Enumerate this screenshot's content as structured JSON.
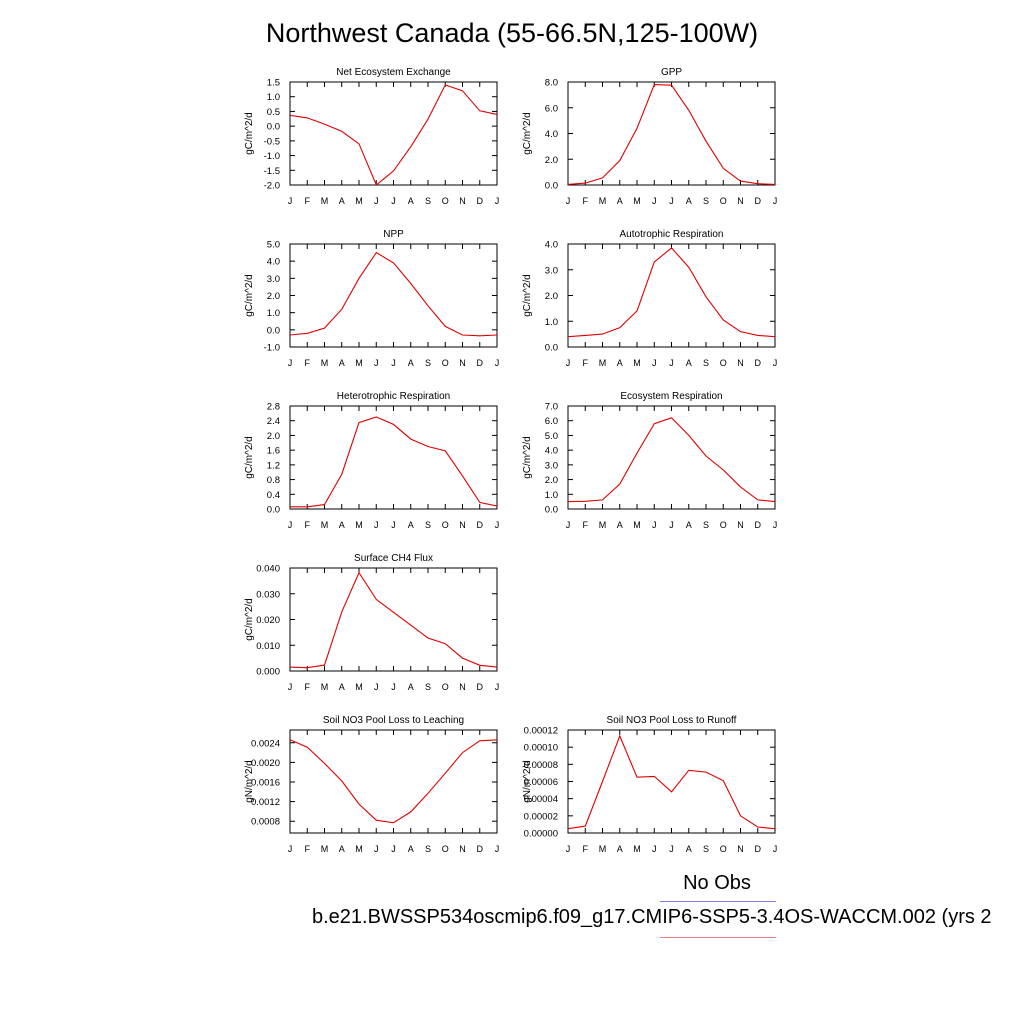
{
  "page": {
    "title": "Northwest Canada (55-66.5N,125-100W)",
    "legend_obs_label": "No Obs",
    "legend_case_label": "b.e21.BWSSP534oscmip6.f09_g17.CMIP6-SSP5-3.4OS-WACCM.002 (yrs 2",
    "colors": {
      "model": "#e00000",
      "obs": "#7b7bf0",
      "case_line": "#f07b7b"
    }
  },
  "chart_data": [
    {
      "type": "line",
      "title": "Net Ecosystem Exchange",
      "ylabel": "gC/m^2/d",
      "categories": [
        "J",
        "F",
        "M",
        "A",
        "M",
        "J",
        "J",
        "A",
        "S",
        "O",
        "N",
        "D",
        "J"
      ],
      "ylim": [
        -2.0,
        1.5
      ],
      "yticks": [
        "1.5",
        "1.0",
        "0.5",
        "0.0",
        "-0.5",
        "-1.0",
        "-1.5",
        "-2.0"
      ],
      "series": [
        {
          "values": [
            0.37,
            0.28,
            0.07,
            -0.18,
            -0.6,
            -2.0,
            -1.52,
            -0.7,
            0.24,
            1.4,
            1.2,
            0.52,
            0.4
          ]
        }
      ]
    },
    {
      "type": "line",
      "title": "GPP",
      "ylabel": "gC/m^2/d",
      "categories": [
        "J",
        "F",
        "M",
        "A",
        "M",
        "J",
        "J",
        "A",
        "S",
        "O",
        "N",
        "D",
        "J"
      ],
      "ylim": [
        0.0,
        8.0
      ],
      "yticks": [
        "8.0",
        "6.0",
        "4.0",
        "2.0",
        "0.0"
      ],
      "series": [
        {
          "values": [
            0.05,
            0.15,
            0.55,
            1.9,
            4.4,
            7.8,
            7.75,
            5.8,
            3.4,
            1.3,
            0.3,
            0.1,
            0.05
          ]
        }
      ]
    },
    {
      "type": "line",
      "title": "NPP",
      "ylabel": "gC/m^2/d",
      "categories": [
        "J",
        "F",
        "M",
        "A",
        "M",
        "J",
        "J",
        "A",
        "S",
        "O",
        "N",
        "D",
        "J"
      ],
      "ylim": [
        -1.0,
        5.0
      ],
      "yticks": [
        "5.0",
        "4.0",
        "3.0",
        "2.0",
        "1.0",
        "0.0",
        "-1.0"
      ],
      "series": [
        {
          "values": [
            -0.3,
            -0.2,
            0.1,
            1.2,
            3.0,
            4.5,
            3.9,
            2.7,
            1.4,
            0.2,
            -0.3,
            -0.35,
            -0.3
          ]
        }
      ]
    },
    {
      "type": "line",
      "title": "Autotrophic Respiration",
      "ylabel": "gC/m^2/d",
      "categories": [
        "J",
        "F",
        "M",
        "A",
        "M",
        "J",
        "J",
        "A",
        "S",
        "O",
        "N",
        "D",
        "J"
      ],
      "ylim": [
        0.0,
        4.0
      ],
      "yticks": [
        "4.0",
        "3.0",
        "2.0",
        "1.0",
        "0.0"
      ],
      "series": [
        {
          "values": [
            0.4,
            0.45,
            0.5,
            0.75,
            1.4,
            3.3,
            3.85,
            3.1,
            1.95,
            1.05,
            0.6,
            0.45,
            0.4
          ]
        }
      ]
    },
    {
      "type": "line",
      "title": "Heterotrophic Respiration",
      "ylabel": "gC/m^2/d",
      "categories": [
        "J",
        "F",
        "M",
        "A",
        "M",
        "J",
        "J",
        "A",
        "S",
        "O",
        "N",
        "D",
        "J"
      ],
      "ylim": [
        0.0,
        2.8
      ],
      "yticks": [
        "2.8",
        "2.4",
        "2.0",
        "1.6",
        "1.2",
        "0.8",
        "0.4",
        "0.0"
      ],
      "series": [
        {
          "values": [
            0.06,
            0.06,
            0.12,
            0.95,
            2.35,
            2.5,
            2.3,
            1.9,
            1.7,
            1.58,
            0.9,
            0.18,
            0.08
          ]
        }
      ]
    },
    {
      "type": "line",
      "title": "Ecosystem Respiration",
      "ylabel": "gC/m^2/d",
      "categories": [
        "J",
        "F",
        "M",
        "A",
        "M",
        "J",
        "J",
        "A",
        "S",
        "O",
        "N",
        "D",
        "J"
      ],
      "ylim": [
        0.0,
        7.0
      ],
      "yticks": [
        "7.0",
        "6.0",
        "5.0",
        "4.0",
        "3.0",
        "2.0",
        "1.0",
        "0.0"
      ],
      "series": [
        {
          "values": [
            0.5,
            0.52,
            0.62,
            1.7,
            3.8,
            5.8,
            6.2,
            5.0,
            3.6,
            2.65,
            1.5,
            0.62,
            0.5
          ]
        }
      ]
    },
    {
      "type": "line",
      "title": "Surface CH4 Flux",
      "ylabel": "gC/m^2/d",
      "categories": [
        "J",
        "F",
        "M",
        "A",
        "M",
        "J",
        "J",
        "A",
        "S",
        "O",
        "N",
        "D",
        "J"
      ],
      "ylim": [
        0.0,
        0.04
      ],
      "yticks": [
        "0.040",
        "0.030",
        "0.020",
        "0.010",
        "0.000"
      ],
      "series": [
        {
          "values": [
            0.0015,
            0.0013,
            0.0023,
            0.023,
            0.0382,
            0.0278,
            0.0228,
            0.0178,
            0.0128,
            0.0106,
            0.005,
            0.0022,
            0.0015
          ]
        }
      ]
    },
    {
      "type": "line",
      "title": "Soil NO3 Pool Loss to Leaching",
      "ylabel": "gN/m^2/d",
      "categories": [
        "J",
        "F",
        "M",
        "A",
        "M",
        "J",
        "J",
        "A",
        "S",
        "O",
        "N",
        "D",
        "J"
      ],
      "ylim": [
        0.00056,
        0.00266
      ],
      "ytick_values": [
        0.0024,
        0.002,
        0.0016,
        0.0012,
        0.0008
      ],
      "yticks": [
        "0.0024",
        "0.0020",
        "0.0016",
        "0.0012",
        "0.0008"
      ],
      "series": [
        {
          "values": [
            0.00246,
            0.00231,
            0.00198,
            0.00162,
            0.00115,
            0.00082,
            0.00077,
            0.00099,
            0.00137,
            0.00178,
            0.0022,
            0.00244,
            0.00246
          ]
        }
      ]
    },
    {
      "type": "line",
      "title": "Soil NO3 Pool Loss to Runoff",
      "ylabel": "gN/m^2/d",
      "categories": [
        "J",
        "F",
        "M",
        "A",
        "M",
        "J",
        "J",
        "A",
        "S",
        "O",
        "N",
        "D",
        "J"
      ],
      "ylim": [
        0.0,
        0.00012
      ],
      "yticks": [
        "0.00012",
        "0.00010",
        "0.00008",
        "0.00006",
        "0.00004",
        "0.00002",
        "0.00000"
      ],
      "series": [
        {
          "values": [
            5e-06,
            8e-06,
            6e-05,
            0.000113,
            6.5e-05,
            6.6e-05,
            4.8e-05,
            7.3e-05,
            7.1e-05,
            6.1e-05,
            2e-05,
            7e-06,
            5e-06
          ]
        }
      ]
    }
  ]
}
